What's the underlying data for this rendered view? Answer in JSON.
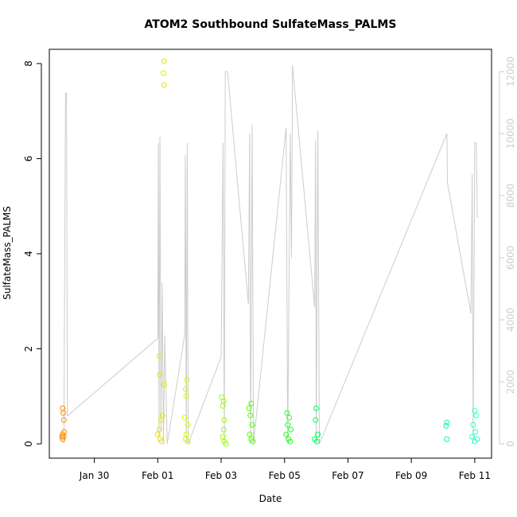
{
  "chart_data": {
    "type": "scatter",
    "title": "ATOM2 Southbound SulfateMass_PALMS",
    "xlabel": "Date",
    "ylabel": "SulfateMass_PALMS",
    "xlim": [
      28.58,
      42.53
    ],
    "ylim": [
      -0.3,
      8.3
    ],
    "y2lim": [
      -462,
      12718
    ],
    "xticks": [
      {
        "value": 30,
        "label": "Jan 30"
      },
      {
        "value": 32,
        "label": "Feb 01"
      },
      {
        "value": 34,
        "label": "Feb 03"
      },
      {
        "value": 36,
        "label": "Feb 05"
      },
      {
        "value": 38,
        "label": "Feb 07"
      },
      {
        "value": 40,
        "label": "Feb 09"
      },
      {
        "value": 42,
        "label": "Feb 11"
      }
    ],
    "yticks": [
      0,
      2,
      4,
      6,
      8
    ],
    "y2ticks": [
      0,
      2000,
      4000,
      6000,
      8000,
      10000,
      12000
    ],
    "y2color": "#cccccc",
    "series": [
      {
        "type": "line",
        "axis": "y2",
        "color": "#cccccc",
        "x": [
          29.04,
          29.09,
          29.12,
          29.15,
          32.0,
          32.02,
          32.04,
          32.07,
          32.1,
          32.14,
          32.18,
          32.22,
          32.3,
          32.85,
          32.87,
          32.9,
          32.93,
          32.96,
          34.0,
          34.06,
          34.1,
          34.13,
          34.2,
          34.23,
          34.86,
          34.9,
          34.93,
          34.98,
          35.02,
          36.05,
          36.1,
          36.18,
          36.22,
          36.25,
          36.95,
          36.98,
          37.0,
          37.05,
          37.1,
          41.12,
          41.14,
          41.88,
          41.92,
          41.95,
          42.0,
          42.05,
          42.08
        ],
        "values": [
          0,
          11300,
          11300,
          900,
          3400,
          9700,
          200,
          9900,
          400,
          5200,
          0,
          3500,
          0,
          3500,
          9300,
          0,
          9700,
          0,
          2800,
          9700,
          0,
          12000,
          12000,
          11700,
          4500,
          10000,
          0,
          10300,
          0,
          10200,
          0,
          10000,
          6000,
          12200,
          4400,
          9800,
          0,
          10100,
          0,
          10000,
          8400,
          4200,
          8700,
          0,
          9700,
          9700,
          7300
        ]
      },
      {
        "color": "#ff8c00",
        "x": [
          29.0,
          29.02,
          29.04,
          29.0,
          29.03,
          29.0,
          28.98,
          29.05
        ],
        "values": [
          0.75,
          0.65,
          0.5,
          0.2,
          0.15,
          0.1,
          0.15,
          0.25
        ]
      },
      {
        "color": "#e6e600",
        "x": [
          32.2,
          32.18,
          32.2,
          32.05,
          32.06,
          32.2,
          32.15,
          32.1,
          32.05,
          32.0,
          32.08,
          32.12
        ],
        "values": [
          8.05,
          7.8,
          7.55,
          1.85,
          1.45,
          1.25,
          0.6,
          0.5,
          0.3,
          0.2,
          0.1,
          0.05
        ]
      },
      {
        "color": "#ccff00",
        "x": [
          32.92,
          32.88,
          32.9,
          32.85,
          32.95,
          32.9,
          32.88,
          32.95
        ],
        "values": [
          1.35,
          1.15,
          1.0,
          0.55,
          0.4,
          0.2,
          0.1,
          0.05
        ]
      },
      {
        "color": "#99ff00",
        "x": [
          34.02,
          34.08,
          34.05,
          34.1,
          34.08,
          34.05,
          34.1,
          34.15
        ],
        "values": [
          0.98,
          0.9,
          0.8,
          0.5,
          0.3,
          0.15,
          0.05,
          0.0
        ]
      },
      {
        "color": "#55ff00",
        "x": [
          34.95,
          34.88,
          34.92,
          34.98,
          34.9,
          34.95,
          35.0
        ],
        "values": [
          0.85,
          0.75,
          0.6,
          0.4,
          0.2,
          0.1,
          0.05
        ]
      },
      {
        "color": "#22ff22",
        "x": [
          36.08,
          36.15,
          36.1,
          36.2,
          36.05,
          36.12,
          36.18
        ],
        "values": [
          0.65,
          0.55,
          0.4,
          0.3,
          0.2,
          0.1,
          0.05
        ]
      },
      {
        "color": "#00ff55",
        "x": [
          37.0,
          36.98,
          37.05,
          36.95,
          37.02
        ],
        "values": [
          0.75,
          0.5,
          0.2,
          0.1,
          0.05
        ]
      },
      {
        "color": "#00ffa0",
        "x": [
          41.12,
          41.1,
          41.12
        ],
        "values": [
          0.45,
          0.38,
          0.1
        ]
      },
      {
        "color": "#33ffcc",
        "x": [
          42.0,
          42.05,
          41.95,
          42.02,
          41.92,
          42.08,
          42.0
        ],
        "values": [
          0.7,
          0.6,
          0.4,
          0.25,
          0.15,
          0.1,
          0.05
        ]
      }
    ]
  }
}
